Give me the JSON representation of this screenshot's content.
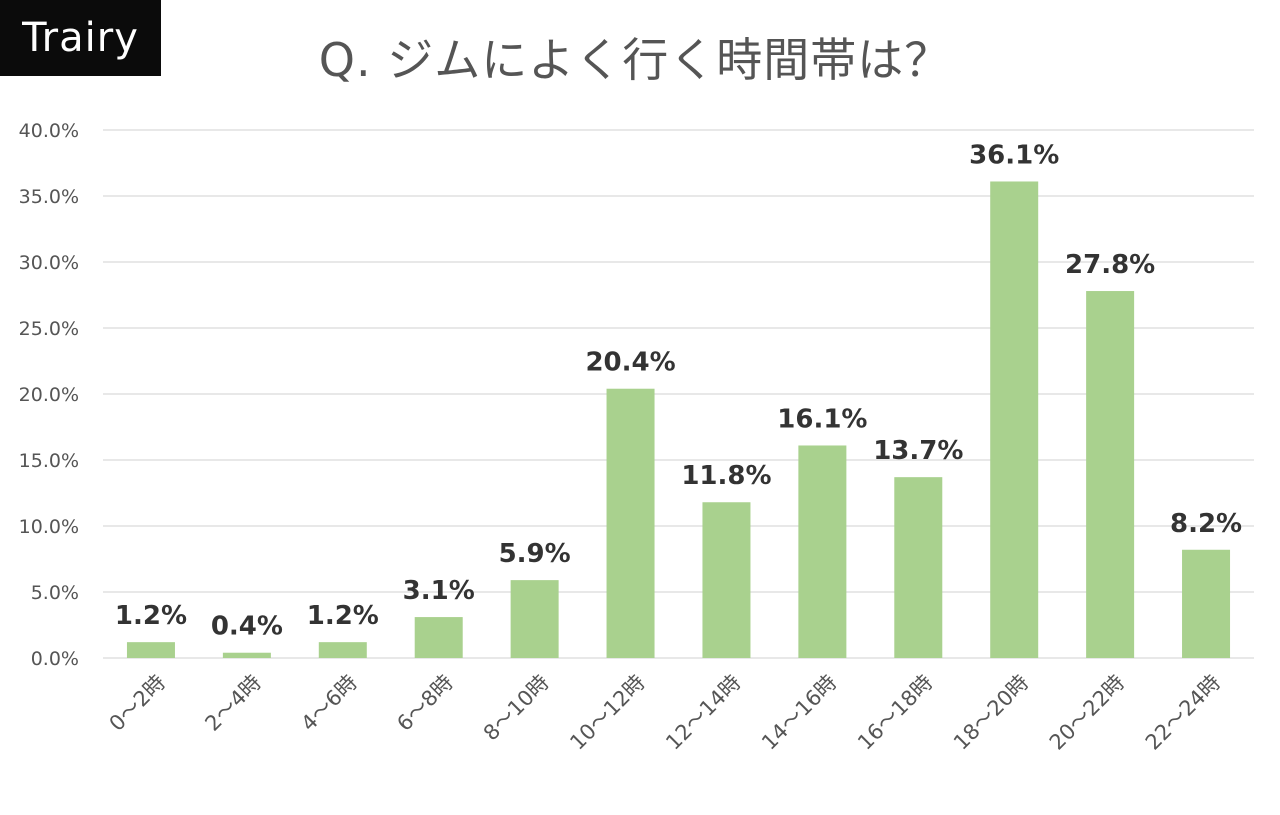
{
  "brand": {
    "name": "Trairy"
  },
  "colors": {
    "bar": "#a9d18e",
    "grid": "#d9d9d9",
    "badge_bg": "#0b0b0b"
  },
  "chart_data": {
    "type": "bar",
    "title": "Q. ジムによく行く時間帯は？",
    "xlabel": "",
    "ylabel": "",
    "categories": [
      "0～2時",
      "2～4時",
      "4～6時",
      "6～8時",
      "8～10時",
      "10～12時",
      "12～14時",
      "14～16時",
      "16～18時",
      "18～20時",
      "20～22時",
      "22～24時"
    ],
    "values": [
      1.2,
      0.4,
      1.2,
      3.1,
      5.9,
      20.4,
      11.8,
      16.1,
      13.7,
      36.1,
      27.8,
      8.2
    ],
    "data_labels": [
      "1.2%",
      "0.4%",
      "1.2%",
      "3.1%",
      "5.9%",
      "20.4%",
      "11.8%",
      "16.1%",
      "13.7%",
      "36.1%",
      "27.8%",
      "8.2%"
    ],
    "yticks": [
      0,
      5,
      10,
      15,
      20,
      25,
      30,
      35,
      40
    ],
    "ytick_labels": [
      "0.0%",
      "5.0%",
      "10.0%",
      "15.0%",
      "20.0%",
      "25.0%",
      "30.0%",
      "35.0%",
      "40.0%"
    ],
    "ylim": [
      0,
      40
    ],
    "grid": true,
    "legend": "none"
  }
}
